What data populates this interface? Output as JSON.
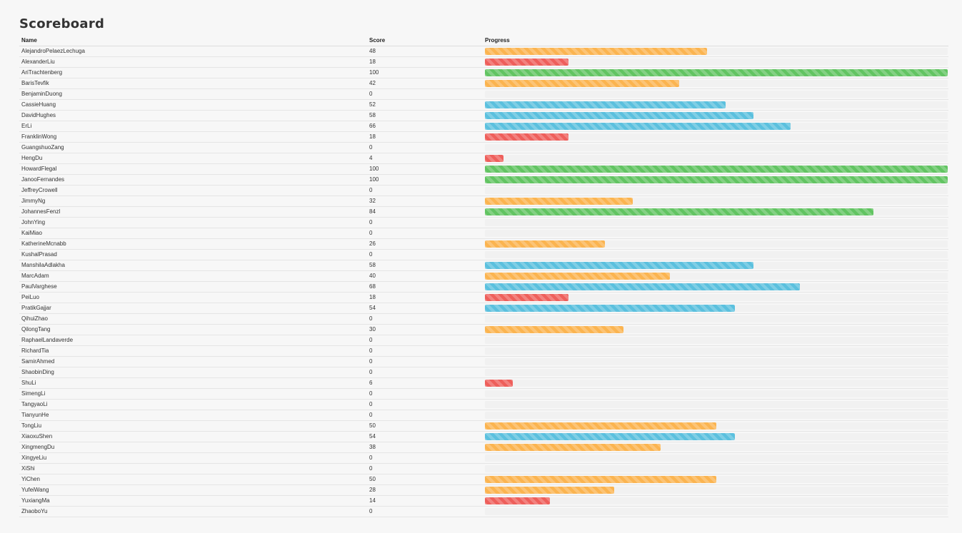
{
  "title": "Scoreboard",
  "columns": {
    "name": "Name",
    "score": "Score",
    "progress": "Progress"
  },
  "colors": {
    "green": "#62c462",
    "blue": "#5bc0de",
    "orange": "#fbb450",
    "red": "#ee5f5b"
  },
  "rows": [
    {
      "name": "AlejandroPelaezLechuga",
      "score": "48",
      "progress": 48,
      "color": "#fbb450"
    },
    {
      "name": "AlexanderLiu",
      "score": "18",
      "progress": 18,
      "color": "#ee5f5b"
    },
    {
      "name": "AriTrachtenberg",
      "score": "100",
      "progress": 100,
      "color": "#62c462"
    },
    {
      "name": "BarisTevfik",
      "score": "42",
      "progress": 42,
      "color": "#fbb450"
    },
    {
      "name": "BenjaminDuong",
      "score": "0",
      "progress": 0,
      "color": "#ee5f5b"
    },
    {
      "name": "CassieHuang",
      "score": "52",
      "progress": 52,
      "color": "#5bc0de"
    },
    {
      "name": "DavidHughes",
      "score": "58",
      "progress": 58,
      "color": "#5bc0de"
    },
    {
      "name": "ErLi",
      "score": "66",
      "progress": 66,
      "color": "#5bc0de"
    },
    {
      "name": "FranklinWong",
      "score": "18",
      "progress": 18,
      "color": "#ee5f5b"
    },
    {
      "name": "GuangshuoZang",
      "score": "0",
      "progress": 0,
      "color": "#ee5f5b"
    },
    {
      "name": "HengDu",
      "score": "4",
      "progress": 4,
      "color": "#ee5f5b"
    },
    {
      "name": "HowardFlegal",
      "score": "100",
      "progress": 100,
      "color": "#62c462"
    },
    {
      "name": "JanooFernandes",
      "score": "100",
      "progress": 100,
      "color": "#62c462"
    },
    {
      "name": "JeffreyCrowell",
      "score": "0",
      "progress": 0,
      "color": "#ee5f5b"
    },
    {
      "name": "JimmyNg",
      "score": "32",
      "progress": 32,
      "color": "#fbb450"
    },
    {
      "name": "JohannesFenzl",
      "score": "84",
      "progress": 84,
      "color": "#62c462"
    },
    {
      "name": "JohnYing",
      "score": "0",
      "progress": 0,
      "color": "#ee5f5b"
    },
    {
      "name": "KaiMiao",
      "score": "0",
      "progress": 0,
      "color": "#ee5f5b"
    },
    {
      "name": "KatherineMcnabb",
      "score": "26",
      "progress": 26,
      "color": "#fbb450"
    },
    {
      "name": "KushalPrasad",
      "score": "0",
      "progress": 0,
      "color": "#ee5f5b"
    },
    {
      "name": "ManshilaAdlakha",
      "score": "58",
      "progress": 58,
      "color": "#5bc0de"
    },
    {
      "name": "MarcAdam",
      "score": "40",
      "progress": 40,
      "color": "#fbb450"
    },
    {
      "name": "PaulVarghese",
      "score": "68",
      "progress": 68,
      "color": "#5bc0de"
    },
    {
      "name": "PeiLuo",
      "score": "18",
      "progress": 18,
      "color": "#ee5f5b"
    },
    {
      "name": "PratikGajjar",
      "score": "54",
      "progress": 54,
      "color": "#5bc0de"
    },
    {
      "name": "QihuiZhao",
      "score": "0",
      "progress": 0,
      "color": "#ee5f5b"
    },
    {
      "name": "QilongTang",
      "score": "30",
      "progress": 30,
      "color": "#fbb450"
    },
    {
      "name": "RaphaelLandaverde",
      "score": "0",
      "progress": 0,
      "color": "#ee5f5b"
    },
    {
      "name": "RichardTia",
      "score": "0",
      "progress": 0,
      "color": "#ee5f5b"
    },
    {
      "name": "SamirAhmed",
      "score": "0",
      "progress": 0,
      "color": "#ee5f5b"
    },
    {
      "name": "ShaobinDing",
      "score": "0",
      "progress": 0,
      "color": "#ee5f5b"
    },
    {
      "name": "ShuLi",
      "score": "6",
      "progress": 6,
      "color": "#ee5f5b"
    },
    {
      "name": "SimengLi",
      "score": "0",
      "progress": 0,
      "color": "#ee5f5b"
    },
    {
      "name": "TangyaoLi",
      "score": "0",
      "progress": 0,
      "color": "#ee5f5b"
    },
    {
      "name": "TianyunHe",
      "score": "0",
      "progress": 0,
      "color": "#ee5f5b"
    },
    {
      "name": "TongLiu",
      "score": "50",
      "progress": 50,
      "color": "#fbb450"
    },
    {
      "name": "XiaoxuShen",
      "score": "54",
      "progress": 54,
      "color": "#5bc0de"
    },
    {
      "name": "XingmengDu",
      "score": "38",
      "progress": 38,
      "color": "#fbb450"
    },
    {
      "name": "XingyeLiu",
      "score": "0",
      "progress": 0,
      "color": "#ee5f5b"
    },
    {
      "name": "XiShi",
      "score": "0",
      "progress": 0,
      "color": "#ee5f5b"
    },
    {
      "name": "YiChen",
      "score": "50",
      "progress": 50,
      "color": "#fbb450"
    },
    {
      "name": "YufeiWang",
      "score": "28",
      "progress": 28,
      "color": "#fbb450"
    },
    {
      "name": "YuxiangMa",
      "score": "14",
      "progress": 14,
      "color": "#ee5f5b"
    },
    {
      "name": "ZhaoboYu",
      "score": "0",
      "progress": 0,
      "color": "#ee5f5b"
    }
  ]
}
